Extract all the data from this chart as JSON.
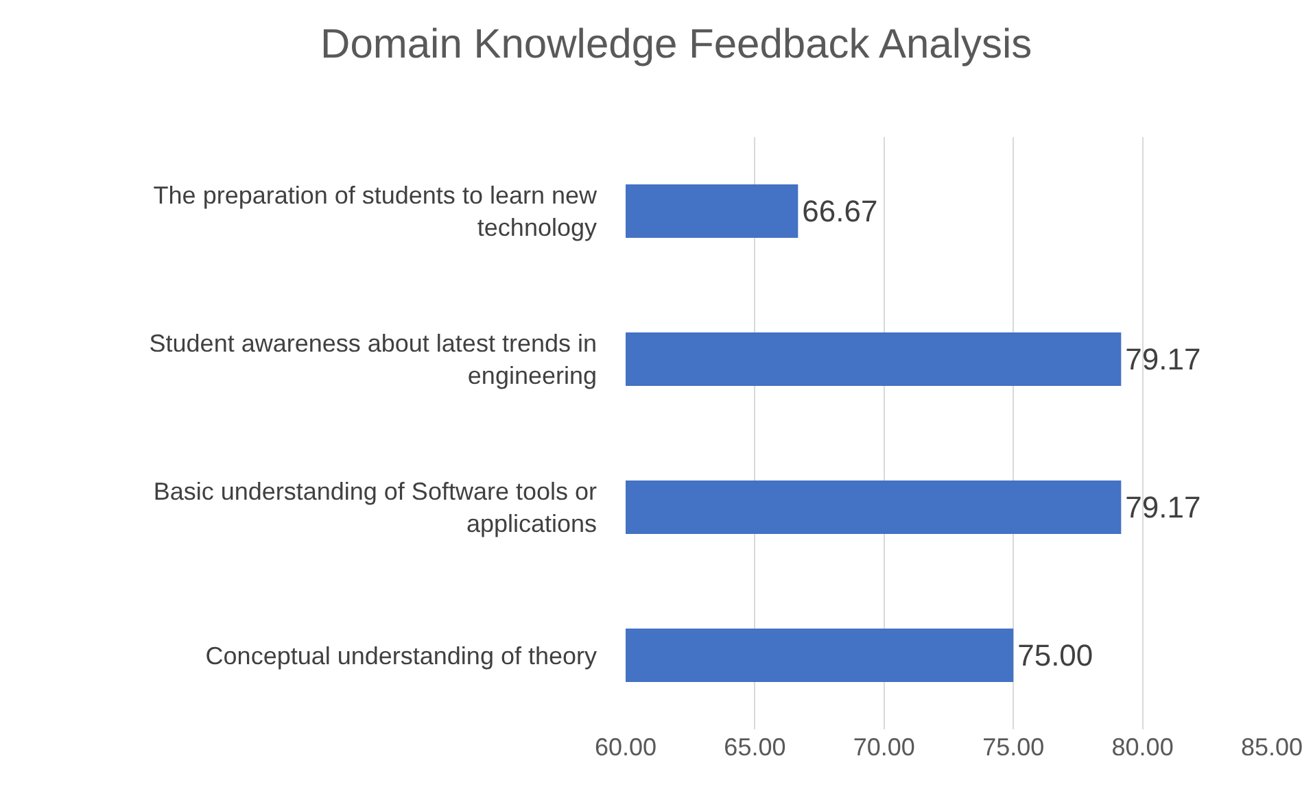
{
  "chart_data": {
    "type": "bar",
    "orientation": "horizontal",
    "title": "Domain Knowledge Feedback Analysis",
    "categories": [
      "The preparation of students to learn new technology",
      "Student awareness about latest trends in engineering",
      "Basic understanding of Software tools or applications",
      "Conceptual understanding of theory"
    ],
    "values": [
      66.67,
      79.17,
      79.17,
      75.0
    ],
    "value_labels": [
      "66.67",
      "79.17",
      "79.17",
      "75.00"
    ],
    "color": "#4472c4",
    "xlim": [
      60,
      85
    ],
    "xticks": [
      {
        "value": 60,
        "label": "60.00"
      },
      {
        "value": 65,
        "label": "65.00"
      },
      {
        "value": 70,
        "label": "70.00"
      },
      {
        "value": 75,
        "label": "75.00"
      },
      {
        "value": 80,
        "label": "80.00"
      },
      {
        "value": 85,
        "label": "85.00"
      }
    ],
    "grid": "x"
  }
}
